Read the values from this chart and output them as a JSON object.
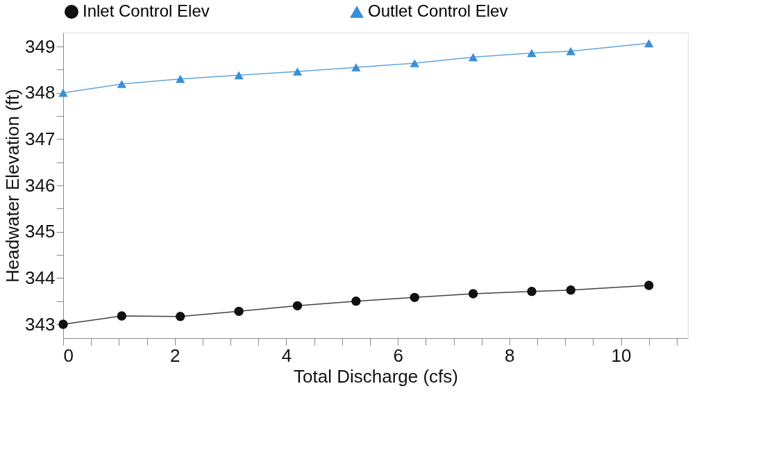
{
  "chart_data": {
    "type": "line",
    "xlabel": "Total Discharge (cfs)",
    "ylabel": "Headwater Elevation (ft)",
    "x": [
      0,
      1.05,
      2.1,
      3.15,
      4.2,
      5.25,
      6.3,
      7.35,
      8.4,
      9.1,
      10.5
    ],
    "series": [
      {
        "name": "Inlet Control Elev",
        "color": "#111111",
        "marker": "circle",
        "values": [
          343.0,
          343.18,
          343.17,
          343.28,
          343.4,
          343.5,
          343.58,
          343.66,
          343.71,
          343.74,
          343.84
        ]
      },
      {
        "name": "Outlet Control Elev",
        "color": "#3a8fd6",
        "marker": "triangle",
        "values": [
          348.0,
          348.19,
          348.3,
          348.38,
          348.46,
          348.55,
          348.64,
          348.77,
          348.86,
          348.9,
          349.07
        ]
      }
    ],
    "xlim": [
      0,
      11.2
    ],
    "ylim": [
      342.7,
      349.3
    ],
    "xticks": [
      0,
      {
        "value": 0.5,
        "label": null
      },
      {
        "value": 1,
        "label": null
      },
      {
        "value": 1.5,
        "label": null
      },
      2,
      {
        "value": 2.5,
        "label": null
      },
      {
        "value": 3,
        "label": null
      },
      {
        "value": 3.5,
        "label": null
      },
      4,
      {
        "value": 4.5,
        "label": null
      },
      {
        "value": 5,
        "label": null
      },
      {
        "value": 5.5,
        "label": null
      },
      6,
      {
        "value": 6.5,
        "label": null
      },
      {
        "value": 7,
        "label": null
      },
      {
        "value": 7.5,
        "label": null
      },
      8,
      {
        "value": 8.5,
        "label": null
      },
      {
        "value": 9,
        "label": null
      },
      {
        "value": 9.5,
        "label": null
      },
      10,
      {
        "value": 10.5,
        "label": null
      },
      {
        "value": 11,
        "label": null
      }
    ],
    "yticks": [
      343,
      {
        "value": 343.5,
        "label": null
      },
      344,
      {
        "value": 344.5,
        "label": null
      },
      345,
      {
        "value": 345.5,
        "label": null
      },
      346,
      {
        "value": 346.5,
        "label": null
      },
      347,
      {
        "value": 347.5,
        "label": null
      },
      348,
      {
        "value": 348.5,
        "label": null
      },
      349
    ],
    "grid": false,
    "legend": "top",
    "line_style": "solid"
  }
}
